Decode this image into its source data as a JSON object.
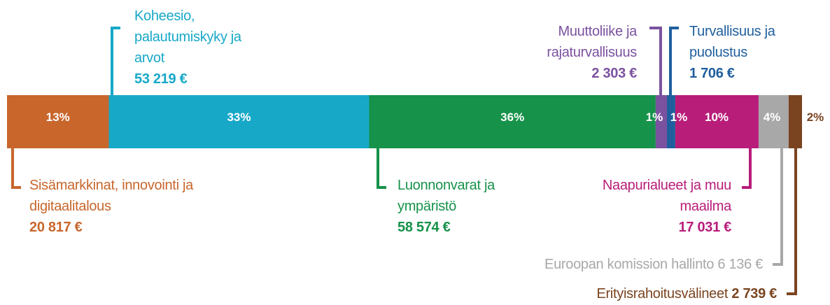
{
  "chart_data": {
    "type": "stacked-bar",
    "categories": [
      "Sisämarkkinat, innovointi ja digitaalitalous",
      "Koheesio, palautumiskyky ja arvot",
      "Luonnonvarat ja ympäristö",
      "Muuttoliike ja rajaturvallisuus",
      "Turvallisuus ja puolustus",
      "Naapurialueet ja muu maailma",
      "Euroopan komission hallinto",
      "Erityisrahoitusvälineet"
    ],
    "values": [
      20817,
      53219,
      58574,
      2303,
      1706,
      17031,
      6136,
      2739
    ],
    "value_labels": [
      "20 817 €",
      "53 219 €",
      "58 574 €",
      "2 303 €",
      "1 706 €",
      "17 031 €",
      "6 136 €",
      "2 739 €"
    ],
    "percent_labels": [
      "13%",
      "33%",
      "36%",
      "1%",
      "1%",
      "10%",
      "4%",
      "2%"
    ],
    "colors": [
      "#c8662c",
      "#17a8c8",
      "#16924a",
      "#7b52a0",
      "#1f5f9e",
      "#b81d7a",
      "#a8a8a8",
      "#7a4420"
    ]
  }
}
